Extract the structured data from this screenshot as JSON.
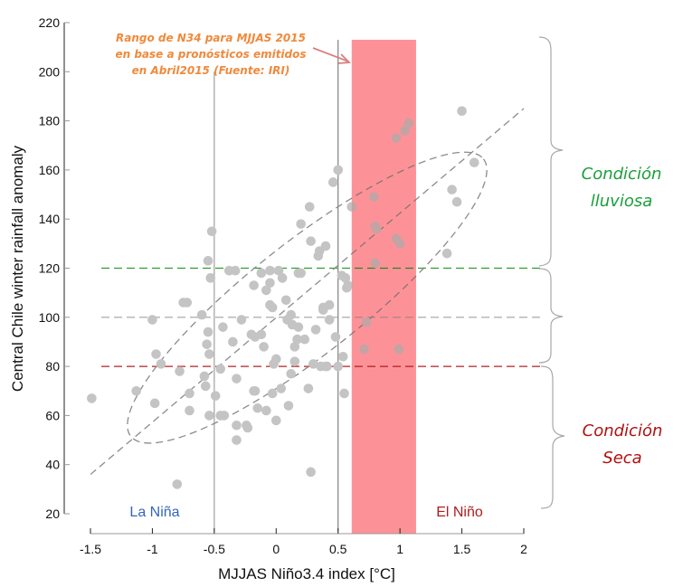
{
  "chart_data": {
    "type": "scatter",
    "xlabel": "MJJAS Niño3.4 index [°C]",
    "ylabel": "Central Chile winter rainfall anomaly",
    "xlim": [
      -1.5,
      2
    ],
    "ylim": [
      20,
      220
    ],
    "xticks": [
      -1.5,
      -1,
      -0.5,
      0,
      0.5,
      1,
      1.5,
      2
    ],
    "xtick_labels": [
      "-1.5",
      "-1",
      "-0.5",
      "0",
      "0.5",
      "1",
      "1.5",
      "2"
    ],
    "yticks": [
      20,
      40,
      60,
      80,
      100,
      120,
      140,
      160,
      180,
      200,
      220
    ],
    "ytick_labels": [
      "20",
      "40",
      "60",
      "80",
      "100",
      "120",
      "140",
      "160",
      "180",
      "200",
      "220"
    ],
    "grid": false,
    "reference_lines": {
      "horizontal": [
        {
          "y": 120,
          "color": "#2ca02c",
          "style": "dashed"
        },
        {
          "y": 100,
          "color": "#a0a0a0",
          "style": "dashed"
        },
        {
          "y": 80,
          "color": "#b22222",
          "style": "dashed"
        }
      ],
      "vertical": [
        {
          "x": -0.5,
          "color": "#a0a0a0",
          "ymax": 200
        },
        {
          "x": 0.5,
          "color": "#808080",
          "ymax": 213
        }
      ]
    },
    "forecast_band": {
      "x_from": 0.61,
      "x_to": 1.13,
      "y_from": 20,
      "y_to": 213,
      "color": "#fdb0b4"
    },
    "regression_line": {
      "x": [
        -1.5,
        2
      ],
      "y": [
        36,
        185
      ]
    },
    "ellipse": {
      "center_x": 0.25,
      "center_y": 108,
      "note": "95% confidence ellipse, rotated along regression"
    },
    "points": [
      {
        "x": -1.49,
        "y": 67
      },
      {
        "x": -1.13,
        "y": 70
      },
      {
        "x": -1.0,
        "y": 99
      },
      {
        "x": -0.98,
        "y": 65
      },
      {
        "x": -0.97,
        "y": 85
      },
      {
        "x": -0.93,
        "y": 81
      },
      {
        "x": -0.8,
        "y": 32
      },
      {
        "x": -0.78,
        "y": 78
      },
      {
        "x": -0.75,
        "y": 106
      },
      {
        "x": -0.72,
        "y": 106
      },
      {
        "x": -0.7,
        "y": 62
      },
      {
        "x": -0.7,
        "y": 69
      },
      {
        "x": -0.6,
        "y": 101
      },
      {
        "x": -0.58,
        "y": 76
      },
      {
        "x": -0.57,
        "y": 72
      },
      {
        "x": -0.56,
        "y": 89
      },
      {
        "x": -0.55,
        "y": 123
      },
      {
        "x": -0.55,
        "y": 94
      },
      {
        "x": -0.54,
        "y": 85
      },
      {
        "x": -0.54,
        "y": 60
      },
      {
        "x": -0.53,
        "y": 116
      },
      {
        "x": -0.52,
        "y": 135
      },
      {
        "x": -0.49,
        "y": 68
      },
      {
        "x": -0.45,
        "y": 60
      },
      {
        "x": -0.42,
        "y": 60
      },
      {
        "x": -0.45,
        "y": 79
      },
      {
        "x": -0.43,
        "y": 96
      },
      {
        "x": -0.38,
        "y": 119
      },
      {
        "x": -0.35,
        "y": 90
      },
      {
        "x": -0.33,
        "y": 119
      },
      {
        "x": -0.32,
        "y": 75
      },
      {
        "x": -0.32,
        "y": 56
      },
      {
        "x": -0.32,
        "y": 50
      },
      {
        "x": -0.28,
        "y": 99
      },
      {
        "x": -0.24,
        "y": 56
      },
      {
        "x": -0.23,
        "y": 55
      },
      {
        "x": -0.2,
        "y": 93
      },
      {
        "x": -0.18,
        "y": 70
      },
      {
        "x": -0.18,
        "y": 113
      },
      {
        "x": -0.17,
        "y": 70
      },
      {
        "x": -0.17,
        "y": 92
      },
      {
        "x": -0.15,
        "y": 63
      },
      {
        "x": -0.12,
        "y": 93
      },
      {
        "x": -0.12,
        "y": 118
      },
      {
        "x": -0.1,
        "y": 88
      },
      {
        "x": -0.08,
        "y": 111
      },
      {
        "x": -0.08,
        "y": 62
      },
      {
        "x": -0.05,
        "y": 119
      },
      {
        "x": -0.05,
        "y": 114
      },
      {
        "x": -0.05,
        "y": 105
      },
      {
        "x": -0.03,
        "y": 104
      },
      {
        "x": -0.03,
        "y": 69
      },
      {
        "x": -0.02,
        "y": 81
      },
      {
        "x": 0.0,
        "y": 83
      },
      {
        "x": 0.0,
        "y": 58
      },
      {
        "x": 0.02,
        "y": 119
      },
      {
        "x": 0.04,
        "y": 71
      },
      {
        "x": 0.05,
        "y": 116
      },
      {
        "x": 0.08,
        "y": 107
      },
      {
        "x": 0.1,
        "y": 64
      },
      {
        "x": 0.09,
        "y": 99
      },
      {
        "x": 0.12,
        "y": 101
      },
      {
        "x": 0.12,
        "y": 77
      },
      {
        "x": 0.13,
        "y": 97
      },
      {
        "x": 0.15,
        "y": 82
      },
      {
        "x": 0.15,
        "y": 88
      },
      {
        "x": 0.17,
        "y": 91
      },
      {
        "x": 0.18,
        "y": 118
      },
      {
        "x": 0.18,
        "y": 96
      },
      {
        "x": 0.2,
        "y": 118
      },
      {
        "x": 0.23,
        "y": 91
      },
      {
        "x": 0.2,
        "y": 138
      },
      {
        "x": 0.26,
        "y": 71
      },
      {
        "x": 0.27,
        "y": 145
      },
      {
        "x": 0.28,
        "y": 37
      },
      {
        "x": 0.28,
        "y": 131
      },
      {
        "x": 0.3,
        "y": 81
      },
      {
        "x": 0.32,
        "y": 95
      },
      {
        "x": 0.34,
        "y": 125
      },
      {
        "x": 0.35,
        "y": 127
      },
      {
        "x": 0.36,
        "y": 80
      },
      {
        "x": 0.38,
        "y": 104
      },
      {
        "x": 0.38,
        "y": 103
      },
      {
        "x": 0.4,
        "y": 80
      },
      {
        "x": 0.41,
        "y": 80
      },
      {
        "x": 0.43,
        "y": 105
      },
      {
        "x": 0.43,
        "y": 99
      },
      {
        "x": 0.4,
        "y": 129
      },
      {
        "x": 0.46,
        "y": 155
      },
      {
        "x": 0.48,
        "y": 92
      },
      {
        "x": 0.5,
        "y": 160
      },
      {
        "x": 0.5,
        "y": 80
      },
      {
        "x": 0.53,
        "y": 117
      },
      {
        "x": 0.54,
        "y": 84
      },
      {
        "x": 0.55,
        "y": 69
      },
      {
        "x": 0.56,
        "y": 116
      },
      {
        "x": 0.57,
        "y": 112
      },
      {
        "x": 0.58,
        "y": 113
      },
      {
        "x": 0.61,
        "y": 145
      },
      {
        "x": 0.71,
        "y": 87
      },
      {
        "x": 0.73,
        "y": 98
      },
      {
        "x": 0.79,
        "y": 149
      },
      {
        "x": 0.8,
        "y": 122
      },
      {
        "x": 0.8,
        "y": 137
      },
      {
        "x": 0.81,
        "y": 136
      },
      {
        "x": 0.97,
        "y": 173
      },
      {
        "x": 0.97,
        "y": 132
      },
      {
        "x": 0.99,
        "y": 87
      },
      {
        "x": 1.0,
        "y": 130
      },
      {
        "x": 1.04,
        "y": 176
      },
      {
        "x": 1.07,
        "y": 179
      },
      {
        "x": 1.38,
        "y": 126
      },
      {
        "x": 1.42,
        "y": 152
      },
      {
        "x": 1.46,
        "y": 147
      },
      {
        "x": 1.5,
        "y": 184
      },
      {
        "x": 1.6,
        "y": 163
      }
    ],
    "annotations": {
      "forecast_note": [
        "Rango de N34 para MJJAS 2015",
        "en base a pronósticos emitidos",
        "en Abril2015 (Fuente: IRI)"
      ],
      "la_nina": "La Niña",
      "el_nino": "El Niño",
      "wet_condition": [
        "Condición",
        "lluviosa"
      ],
      "dry_condition": [
        "Condición",
        "Seca"
      ]
    },
    "colors": {
      "point": "#c4c4c4",
      "annotation": "#f08a3c",
      "arrow": "#d98080",
      "la_nina": "#3366bb",
      "el_nino": "#b01c1c",
      "wet": "#1a9f3a",
      "dry": "#b01010",
      "brace": "#a8a8a8"
    }
  }
}
